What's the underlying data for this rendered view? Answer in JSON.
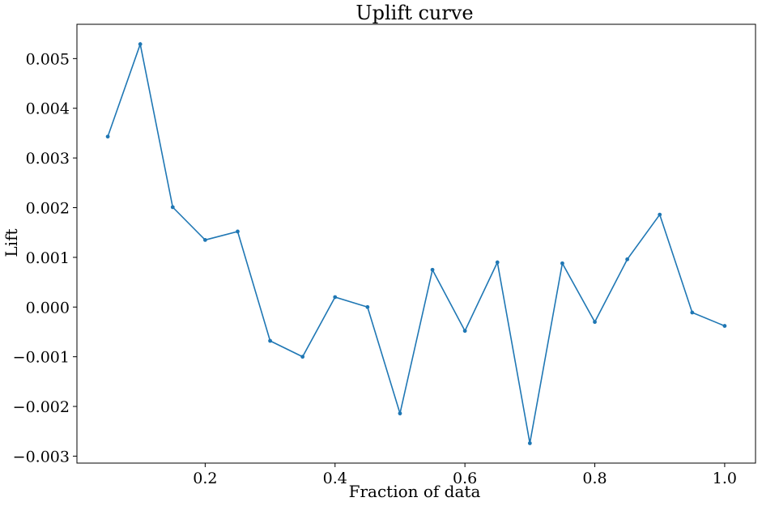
{
  "chart_data": {
    "type": "line",
    "title": "Uplift curve",
    "xlabel": "Fraction of data",
    "ylabel": "Lift",
    "x": [
      0.05,
      0.1,
      0.15,
      0.2,
      0.25,
      0.3,
      0.35,
      0.4,
      0.45,
      0.5,
      0.55,
      0.6,
      0.65,
      0.7,
      0.75,
      0.8,
      0.85,
      0.9,
      0.95,
      1.0
    ],
    "series": [
      {
        "values": [
          0.00343,
          0.00529,
          0.00201,
          0.00135,
          0.00152,
          -0.00068,
          -0.001,
          0.0002,
          0.0,
          -0.00214,
          0.00075,
          -0.00048,
          0.0009,
          -0.00274,
          0.00088,
          -0.0003,
          0.00096,
          0.00186,
          -0.00011,
          -0.00038
        ],
        "color": "#1f77b4"
      }
    ],
    "xlim": [
      0.0025,
      1.0475
    ],
    "ylim": [
      -0.00314,
      0.00569
    ],
    "xticks": [
      0.2,
      0.4,
      0.6,
      0.8,
      1.0
    ],
    "xtick_labels": [
      "0.2",
      "0.4",
      "0.6",
      "0.8",
      "1.0"
    ],
    "yticks": [
      -0.003,
      -0.002,
      -0.001,
      0.0,
      0.001,
      0.002,
      0.003,
      0.004,
      0.005
    ],
    "ytick_labels": [
      "−0.003",
      "−0.002",
      "−0.001",
      "0.000",
      "0.001",
      "0.002",
      "0.003",
      "0.004",
      "0.005"
    ],
    "grid": false,
    "legend": "none"
  }
}
